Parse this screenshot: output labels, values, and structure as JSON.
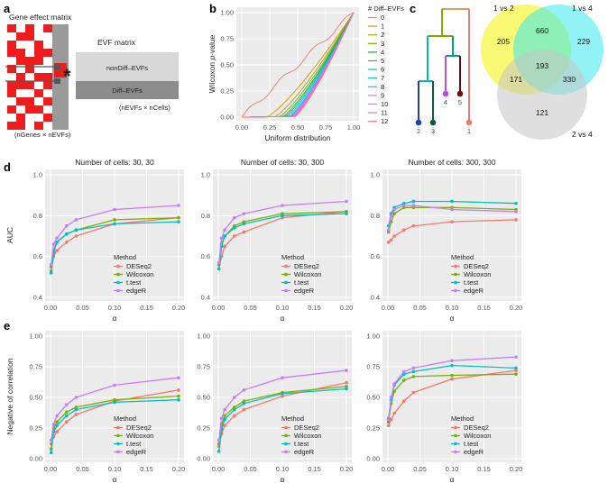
{
  "panels": {
    "a": "a",
    "b": "b",
    "c": "c",
    "d": "d",
    "e": "e"
  },
  "panel_a": {
    "gene_effect_title": "Gene effect matrix",
    "gene_effect_dims": "(nGenes × nEVFs)",
    "evf_title": "EVF matrix",
    "nondiff_label": "nonDiff–EVFs",
    "diff_label": "Diff–EVFs",
    "evf_dims": "(nEVFs × nCells)",
    "star": "*",
    "colors": {
      "red": "#ee1c1c",
      "grey": "#9a9a9a",
      "light": "#d8d8d8",
      "dark": "#8c8c8c"
    }
  },
  "panel_c": {
    "leaf_labels": [
      "2",
      "3",
      "4",
      "5",
      "1"
    ],
    "leaf_colors": [
      "#1f3fbf",
      "#0e5a3a",
      "#b44fe0",
      "#6a0d0d",
      "#e87b73"
    ],
    "venn": {
      "sets": [
        {
          "label": "1 vs 2",
          "color": "#f2f200"
        },
        {
          "label": "1 vs 4",
          "color": "#36e9ee"
        },
        {
          "label": "2 vs 4",
          "color": "#c4c4c4"
        }
      ],
      "regions": {
        "only_1v2": "205",
        "only_1v4": "229",
        "only_2v4": "121",
        "ab": "660",
        "ac": "171",
        "bc": "330",
        "abc": "193"
      }
    }
  },
  "chart_data": [
    {
      "id": "b",
      "type": "line",
      "title": "",
      "xlabel": "Uniform distribution",
      "ylabel": "Wilcoxon p-value",
      "ylabel_prefix": "Wilcoxon ",
      "ylabel_italic": "p",
      "ylabel_suffix": "-value",
      "xlim": [
        0,
        1
      ],
      "ylim": [
        0,
        1
      ],
      "xticks": [
        "0.00",
        "0.25",
        "0.50",
        "0.75",
        "1.00"
      ],
      "yticks": [
        "0.00",
        "0.25",
        "0.50",
        "0.75",
        "1.00"
      ],
      "legend_title": "# Diff–EVFs",
      "legend_labels": [
        "0",
        "1",
        "2",
        "3",
        "4",
        "5",
        "6",
        "7",
        "8",
        "9",
        "10",
        "11",
        "12"
      ],
      "legend_colors": [
        "#f8766d",
        "#de8c00",
        "#b79f00",
        "#7cae00",
        "#00ba38",
        "#00c08b",
        "#00bfc4",
        "#00b4f0",
        "#619cff",
        "#c77cff",
        "#f564e3",
        "#ff64b0",
        "#f8766d"
      ],
      "curve_onset": [
        0.0,
        0.22,
        0.29,
        0.33,
        0.36,
        0.38,
        0.4,
        0.42,
        0.43,
        0.44,
        0.45,
        0.46,
        0.47
      ]
    },
    {
      "id": "d",
      "type": "line",
      "ylabel": "AUC",
      "xlabel": "α",
      "x": [
        0.001,
        0.005,
        0.01,
        0.025,
        0.04,
        0.1,
        0.2
      ],
      "xticks": [
        "0.00",
        "0.05",
        "0.10",
        "0.15",
        "0.20"
      ],
      "yticks": [
        "0.4",
        "0.6",
        "0.8",
        "1.0"
      ],
      "ylim": [
        0.4,
        1.0
      ],
      "legend_title": "Method",
      "methods": [
        "DESeq2",
        "Wilcoxon",
        "t.test",
        "edgeR"
      ],
      "colors": [
        "#f8766d",
        "#7cae00",
        "#00bfc4",
        "#c77cff"
      ],
      "panels": [
        {
          "title": "Number of cells: 30, 30",
          "series": [
            [
              0.53,
              0.6,
              0.63,
              0.67,
              0.7,
              0.76,
              0.79
            ],
            [
              0.55,
              0.63,
              0.67,
              0.71,
              0.73,
              0.78,
              0.79
            ],
            [
              0.52,
              0.62,
              0.67,
              0.71,
              0.73,
              0.76,
              0.77
            ],
            [
              0.56,
              0.66,
              0.69,
              0.75,
              0.78,
              0.83,
              0.85
            ]
          ]
        },
        {
          "title": "Number of cells: 30, 300",
          "series": [
            [
              0.54,
              0.6,
              0.65,
              0.7,
              0.72,
              0.79,
              0.82
            ],
            [
              0.56,
              0.66,
              0.7,
              0.75,
              0.77,
              0.81,
              0.82
            ],
            [
              0.54,
              0.65,
              0.7,
              0.74,
              0.76,
              0.8,
              0.81
            ],
            [
              0.57,
              0.69,
              0.73,
              0.79,
              0.81,
              0.85,
              0.87
            ]
          ]
        },
        {
          "title": "Number of cells: 300, 300",
          "series": [
            [
              0.67,
              0.68,
              0.7,
              0.73,
              0.75,
              0.77,
              0.78
            ],
            [
              0.72,
              0.77,
              0.81,
              0.84,
              0.84,
              0.84,
              0.83
            ],
            [
              0.75,
              0.81,
              0.84,
              0.86,
              0.87,
              0.87,
              0.86
            ],
            [
              0.73,
              0.8,
              0.83,
              0.85,
              0.85,
              0.83,
              0.82
            ]
          ]
        }
      ]
    },
    {
      "id": "e",
      "type": "line",
      "ylabel": "Negative of correlation",
      "xlabel": "α",
      "x": [
        0.001,
        0.005,
        0.01,
        0.025,
        0.04,
        0.1,
        0.2
      ],
      "xticks": [
        "0.00",
        "0.05",
        "0.10",
        "0.15",
        "0.20"
      ],
      "yticks": [
        "0.00",
        "0.25",
        "0.50",
        "0.75",
        "1.00"
      ],
      "ylim": [
        0.0,
        1.0
      ],
      "legend_title": "Method",
      "methods": [
        "DESeq2",
        "Wilcoxon",
        "t.test",
        "edgeR"
      ],
      "colors": [
        "#f8766d",
        "#7cae00",
        "#00bfc4",
        "#c77cff"
      ],
      "panels": [
        {
          "title": "",
          "series": [
            [
              0.12,
              0.18,
              0.22,
              0.3,
              0.36,
              0.47,
              0.56
            ],
            [
              0.08,
              0.25,
              0.3,
              0.38,
              0.42,
              0.48,
              0.51
            ],
            [
              0.05,
              0.22,
              0.27,
              0.35,
              0.4,
              0.46,
              0.48
            ],
            [
              0.15,
              0.28,
              0.35,
              0.44,
              0.5,
              0.6,
              0.66
            ]
          ]
        },
        {
          "title": "",
          "series": [
            [
              0.1,
              0.2,
              0.27,
              0.35,
              0.4,
              0.51,
              0.62
            ],
            [
              0.12,
              0.28,
              0.35,
              0.42,
              0.47,
              0.54,
              0.59
            ],
            [
              0.06,
              0.24,
              0.32,
              0.4,
              0.45,
              0.53,
              0.57
            ],
            [
              0.15,
              0.33,
              0.4,
              0.5,
              0.56,
              0.66,
              0.72
            ]
          ]
        },
        {
          "title": "",
          "series": [
            [
              0.27,
              0.32,
              0.37,
              0.47,
              0.54,
              0.65,
              0.72
            ],
            [
              0.3,
              0.45,
              0.55,
              0.64,
              0.67,
              0.68,
              0.69
            ],
            [
              0.33,
              0.48,
              0.6,
              0.69,
              0.71,
              0.76,
              0.74
            ],
            [
              0.32,
              0.5,
              0.61,
              0.71,
              0.74,
              0.8,
              0.83
            ]
          ]
        }
      ]
    }
  ]
}
